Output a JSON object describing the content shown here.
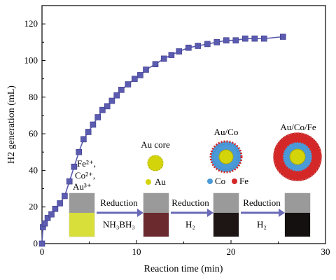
{
  "chart_data": {
    "type": "line",
    "xlabel": "Reaction time (min)",
    "ylabel": "H2 generation (mL)",
    "xlim": [
      0,
      30
    ],
    "ylim": [
      0,
      130
    ],
    "xticks": [
      "0",
      "10",
      "20",
      "30"
    ],
    "yticks": [
      "0",
      "20",
      "40",
      "60",
      "80",
      "100",
      "120"
    ],
    "grid": false,
    "series": [
      {
        "marker": "square",
        "color": "#5b5bb0",
        "x": [
          0,
          0.1,
          0.3,
          0.6,
          1.0,
          1.4,
          1.9,
          2.4,
          2.9,
          3.4,
          3.9,
          4.4,
          4.9,
          5.4,
          5.9,
          6.4,
          6.9,
          7.4,
          7.9,
          8.4,
          9.1,
          9.8,
          10.4,
          11.0,
          12.0,
          12.9,
          13.7,
          14.5,
          15.5,
          16.5,
          17.5,
          18.5,
          19.5,
          20.5,
          21.5,
          22.5,
          23.5,
          25.5
        ],
        "y": [
          0,
          9,
          11,
          14,
          16,
          19,
          22,
          26,
          34,
          42,
          50,
          57,
          61,
          65,
          69,
          73,
          75,
          78,
          81,
          84,
          87,
          90,
          92,
          95,
          98,
          101,
          103,
          105,
          107,
          108,
          109,
          110,
          111,
          111,
          112,
          112,
          112,
          113
        ]
      }
    ]
  },
  "labels": {
    "ions_line1": "Fe²⁺,",
    "ions_line2": "Co²⁺,",
    "ions_line3": "Au³⁺",
    "reduction": "Reduction",
    "reagent1": "NH₃BH₃",
    "reagent2": "H₂",
    "reagent3": "H₂",
    "au_core": "Au core",
    "au_co": "Au/Co",
    "au_co_fe": "Au/Co/Fe",
    "legend_au": "Au",
    "legend_co": "Co",
    "legend_fe": "Fe"
  },
  "colors": {
    "line": "#5b5bb0",
    "arrow": "#6a6ab8",
    "au": "#d4d40a",
    "co": "#4a9ad8",
    "fe": "#d42828"
  }
}
